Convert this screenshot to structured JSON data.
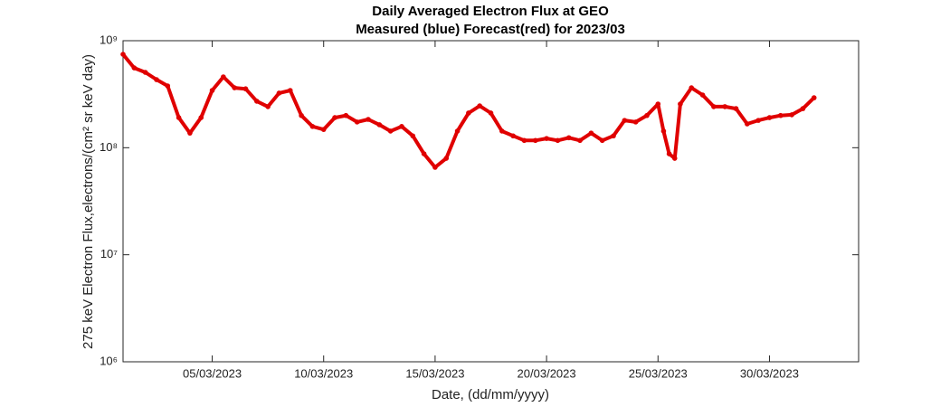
{
  "chart_data": {
    "type": "scatter",
    "title": "Daily Averaged Electron Flux at GEO",
    "subtitle": "Measured (blue) Forecast(red) for 2023/03",
    "x_label": "Date, (dd/mm/yyyy)",
    "y_label": "275 keV Electron Flux,electrons/(cm² sr keV day)",
    "log_y": true,
    "color": "#e00000",
    "xlim": [
      1,
      34
    ],
    "xticks": [
      {
        "value": 5,
        "label": "05/03/2023"
      },
      {
        "value": 10,
        "label": "10/03/2023"
      },
      {
        "value": 15,
        "label": "15/03/2023"
      },
      {
        "value": 20,
        "label": "20/03/2023"
      },
      {
        "value": 25,
        "label": "25/03/2023"
      },
      {
        "value": 30,
        "label": "30/03/2023"
      }
    ],
    "ylim": [
      1000000,
      1000000000
    ],
    "yticks": [
      {
        "value": 1000000,
        "label": "10⁶"
      },
      {
        "value": 10000000,
        "label": "10⁷"
      },
      {
        "value": 100000000,
        "label": "10⁸"
      },
      {
        "value": 1000000000,
        "label": "10⁹"
      }
    ],
    "x": [
      1,
      1.5,
      2,
      2.5,
      3,
      3.5,
      4,
      4.5,
      5,
      5.5,
      6,
      6.5,
      7,
      7.5,
      8,
      8.5,
      9,
      9.5,
      10,
      10.5,
      11,
      11.5,
      12,
      12.5,
      13,
      13.5,
      14,
      14.5,
      15,
      15.5,
      16,
      16.5,
      17,
      17.5,
      18,
      18.5,
      19,
      19.5,
      20,
      20.5,
      21,
      21.5,
      22,
      22.5,
      23,
      23.5,
      24,
      24.5,
      25,
      25.25,
      25.5,
      25.75,
      26,
      26.5,
      27,
      27.5,
      28,
      28.5,
      29,
      29.5,
      30,
      30.5,
      31,
      31.5,
      32
    ],
    "values": [
      746000000,
      557000000,
      506000000,
      433000000,
      378000000,
      191000000,
      137000000,
      191000000,
      343000000,
      459000000,
      363000000,
      355000000,
      272000000,
      242000000,
      324000000,
      343000000,
      200000000,
      158000000,
      148000000,
      191000000,
      200000000,
      174000000,
      184000000,
      164000000,
      143000000,
      158000000,
      129000000,
      87700000,
      65600000,
      79600000,
      143000000,
      211000000,
      246000000,
      211000000,
      143000000,
      129000000,
      117000000,
      117000000,
      122000000,
      117000000,
      124000000,
      117000000,
      137000000,
      117000000,
      129000000,
      180000000,
      174000000,
      200000000,
      256000000,
      143000000,
      87700000,
      79600000,
      256000000,
      363000000,
      311000000,
      242000000,
      242000000,
      232000000,
      167000000,
      180000000,
      191000000,
      200000000,
      203000000,
      232000000,
      293000000
    ]
  }
}
